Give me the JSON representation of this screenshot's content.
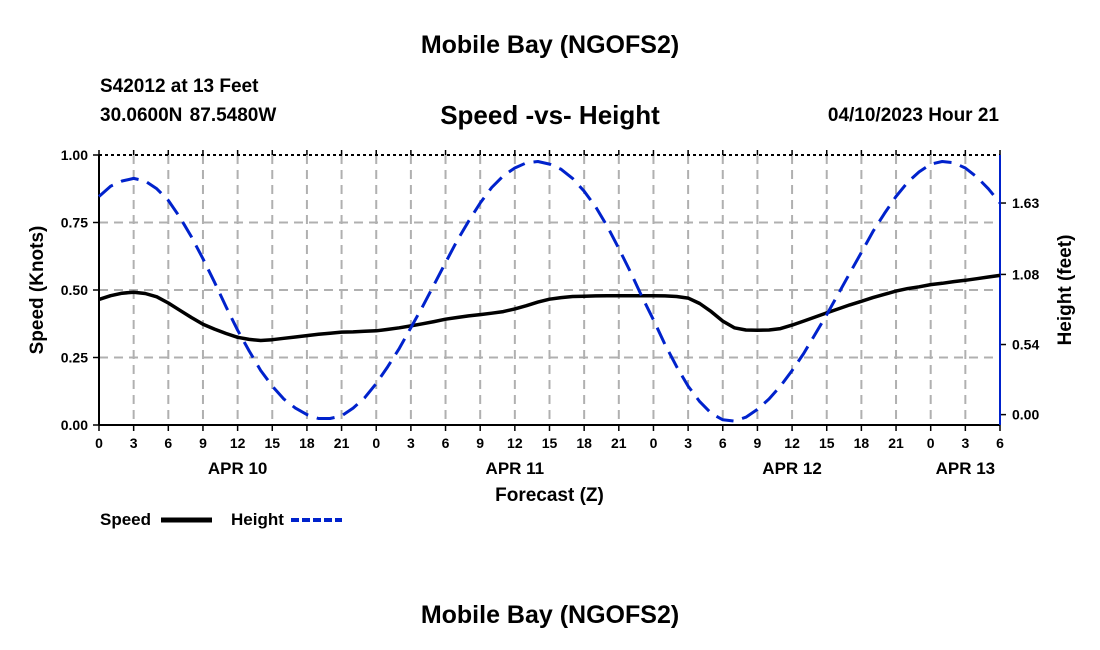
{
  "header": {
    "title": "Mobile Bay (NGOFS2)",
    "station": "S42012 at 13 Feet",
    "coordinates": "30.0600N  87.5480W",
    "subtitle": "Speed -vs- Height",
    "datetime": "04/10/2023 Hour 21"
  },
  "footer": {
    "title": "Mobile Bay (NGOFS2)"
  },
  "chart_data": {
    "type": "line",
    "title": "Speed -vs- Height",
    "xlabel": "Forecast (Z)",
    "ylabel": "Speed (Knots)",
    "y2label": "Height (feet)",
    "x_ticks": [
      "0",
      "3",
      "6",
      "9",
      "12",
      "15",
      "18",
      "21",
      "0",
      "3",
      "6",
      "9",
      "12",
      "15",
      "18",
      "21",
      "0",
      "3",
      "6",
      "9",
      "12",
      "15",
      "18",
      "21",
      "0",
      "3",
      "6"
    ],
    "day_labels": [
      {
        "label": "APR 10",
        "hour": 12
      },
      {
        "label": "APR 11",
        "hour": 36
      },
      {
        "label": "APR 12",
        "hour": 60
      },
      {
        "label": "APR 13",
        "hour": 75
      }
    ],
    "xlim": [
      0,
      78
    ],
    "ylim": [
      0,
      1.0
    ],
    "y_ticks": [
      "0.00",
      "0.25",
      "0.50",
      "0.75",
      "1.00"
    ],
    "y_tick_values": [
      0,
      0.25,
      0.5,
      0.75,
      1.0
    ],
    "y2lim": [
      -0.08,
      2.0
    ],
    "y2_ticks": [
      "0.00",
      "0.54",
      "1.08",
      "1.63"
    ],
    "y2_tick_values": [
      0.0,
      0.54,
      1.08,
      1.63
    ],
    "grid": true,
    "legend_position": "bottom-left",
    "series": [
      {
        "name": "Speed",
        "axis": "left",
        "color": "#000000",
        "style": "solid",
        "x": [
          0,
          1,
          2,
          3,
          4,
          5,
          6,
          7,
          8,
          9,
          10,
          11,
          12,
          13,
          14,
          15,
          16,
          17,
          18,
          19,
          20,
          21,
          22,
          23,
          24,
          25,
          26,
          27,
          28,
          29,
          30,
          31,
          32,
          33,
          34,
          35,
          36,
          37,
          38,
          39,
          40,
          41,
          42,
          43,
          44,
          45,
          46,
          47,
          48,
          49,
          50,
          51,
          52,
          53,
          54,
          55,
          56,
          57,
          58,
          59,
          60,
          61,
          62,
          63,
          64,
          65,
          66,
          67,
          68,
          69,
          70,
          71,
          72,
          73,
          74,
          75,
          76,
          77,
          78
        ],
        "values": [
          0.465,
          0.479,
          0.488,
          0.492,
          0.487,
          0.475,
          0.452,
          0.425,
          0.398,
          0.373,
          0.355,
          0.339,
          0.325,
          0.317,
          0.313,
          0.316,
          0.321,
          0.326,
          0.331,
          0.336,
          0.34,
          0.344,
          0.345,
          0.347,
          0.349,
          0.354,
          0.36,
          0.367,
          0.375,
          0.383,
          0.392,
          0.398,
          0.404,
          0.409,
          0.414,
          0.42,
          0.43,
          0.442,
          0.455,
          0.466,
          0.472,
          0.476,
          0.477,
          0.478,
          0.479,
          0.479,
          0.479,
          0.479,
          0.479,
          0.478,
          0.476,
          0.47,
          0.45,
          0.42,
          0.385,
          0.36,
          0.352,
          0.351,
          0.352,
          0.357,
          0.37,
          0.385,
          0.4,
          0.415,
          0.43,
          0.445,
          0.458,
          0.472,
          0.484,
          0.496,
          0.505,
          0.512,
          0.52,
          0.525,
          0.531,
          0.536,
          0.542,
          0.548,
          0.554
        ]
      },
      {
        "name": "Height",
        "axis": "right",
        "color": "#0022cc",
        "style": "dashed",
        "x": [
          0,
          1,
          2,
          3,
          4,
          5,
          6,
          7,
          8,
          9,
          10,
          11,
          12,
          13,
          14,
          15,
          16,
          17,
          18,
          19,
          20,
          21,
          22,
          23,
          24,
          25,
          26,
          27,
          28,
          29,
          30,
          31,
          32,
          33,
          34,
          35,
          36,
          37,
          38,
          39,
          40,
          41,
          42,
          43,
          44,
          45,
          46,
          47,
          48,
          49,
          50,
          51,
          52,
          53,
          54,
          55,
          56,
          57,
          58,
          59,
          60,
          61,
          62,
          63,
          64,
          65,
          66,
          67,
          68,
          69,
          70,
          71,
          72,
          73,
          74,
          75,
          76,
          77,
          78
        ],
        "values": [
          1.68,
          1.76,
          1.8,
          1.82,
          1.8,
          1.74,
          1.65,
          1.52,
          1.37,
          1.2,
          1.02,
          0.83,
          0.65,
          0.49,
          0.34,
          0.22,
          0.12,
          0.05,
          0.0,
          -0.03,
          -0.03,
          -0.01,
          0.05,
          0.13,
          0.24,
          0.37,
          0.51,
          0.67,
          0.83,
          1.0,
          1.17,
          1.34,
          1.49,
          1.63,
          1.75,
          1.84,
          1.9,
          1.94,
          1.95,
          1.93,
          1.89,
          1.82,
          1.72,
          1.6,
          1.45,
          1.28,
          1.1,
          0.91,
          0.73,
          0.54,
          0.37,
          0.22,
          0.1,
          0.01,
          -0.04,
          -0.05,
          -0.02,
          0.04,
          0.12,
          0.22,
          0.34,
          0.47,
          0.62,
          0.77,
          0.93,
          1.09,
          1.25,
          1.41,
          1.55,
          1.68,
          1.79,
          1.87,
          1.93,
          1.95,
          1.94,
          1.9,
          1.83,
          1.74,
          1.63
        ]
      }
    ],
    "legend": [
      {
        "label": "Speed",
        "color": "#000000",
        "style": "solid"
      },
      {
        "label": "Height",
        "color": "#0022cc",
        "style": "dashed"
      }
    ]
  }
}
